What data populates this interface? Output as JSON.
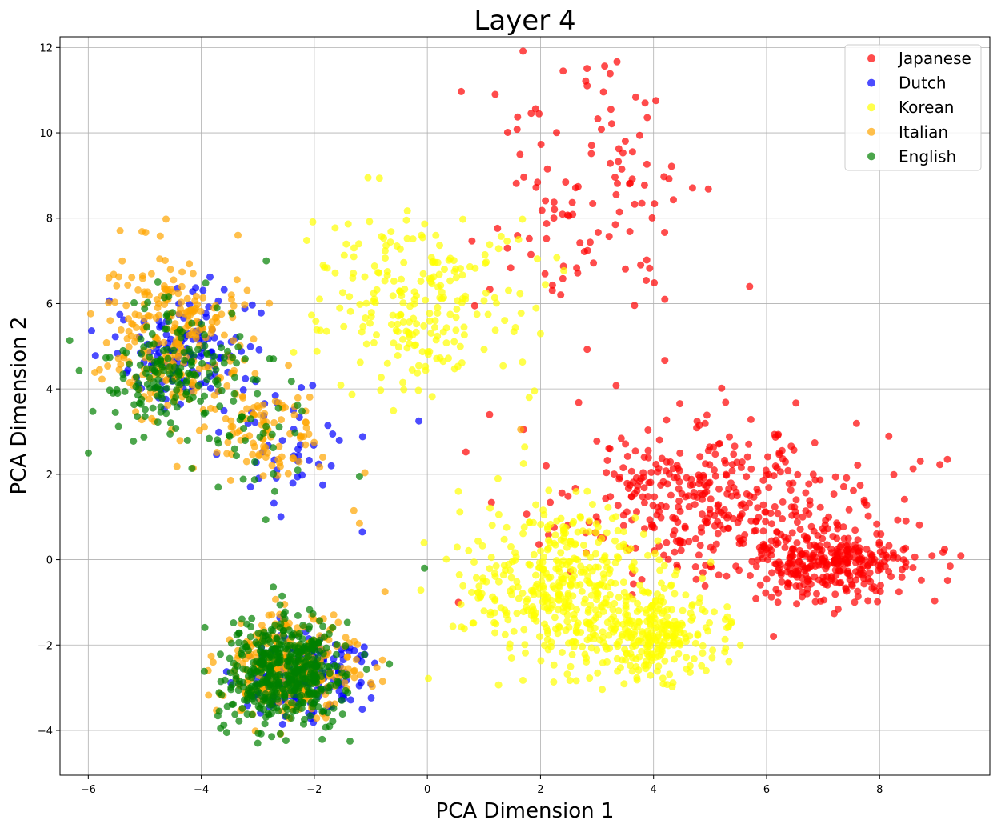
{
  "chart_data": {
    "type": "scatter",
    "title": "Layer 4",
    "xlabel": "PCA Dimension 1",
    "ylabel": "PCA Dimension 2",
    "xlim": [
      -6.5,
      9.95
    ],
    "ylim": [
      -5.05,
      12.25
    ],
    "xticks": [
      -6,
      -4,
      -2,
      0,
      2,
      4,
      6,
      8
    ],
    "yticks": [
      -4,
      -2,
      0,
      2,
      4,
      6,
      8,
      10,
      12
    ],
    "grid": true,
    "legend_position": "top-right",
    "series": [
      {
        "name": "Japanese",
        "color": "#ff0000",
        "clusters": [
          {
            "cx": 2.8,
            "cy": 8.4,
            "sx": 1.0,
            "sy": 1.6,
            "n": 110
          },
          {
            "cx": 4.9,
            "cy": 1.4,
            "sx": 1.3,
            "sy": 0.9,
            "n": 360
          },
          {
            "cx": 7.1,
            "cy": -0.1,
            "sx": 0.8,
            "sy": 0.45,
            "n": 330
          }
        ],
        "points": [
          [
            1.2,
            10.9
          ],
          [
            2.4,
            11.45
          ],
          [
            3.85,
            10.7
          ],
          [
            9.2,
            2.35
          ],
          [
            5.7,
            6.4
          ],
          [
            1.1,
            3.4
          ],
          [
            1.7,
            3.05
          ],
          [
            2.1,
            2.2
          ],
          [
            0.55,
            -1.0
          ],
          [
            4.2,
            6.1
          ]
        ]
      },
      {
        "name": "Dutch",
        "color": "#0000ff",
        "clusters": [
          {
            "cx": -4.3,
            "cy": 4.8,
            "sx": 0.55,
            "sy": 0.7,
            "n": 140
          },
          {
            "cx": -2.6,
            "cy": 3.0,
            "sx": 0.55,
            "sy": 0.7,
            "n": 40
          },
          {
            "cx": -2.1,
            "cy": -2.7,
            "sx": 0.55,
            "sy": 0.45,
            "n": 220
          }
        ],
        "points": [
          [
            -0.15,
            3.25
          ],
          [
            -1.15,
            0.65
          ],
          [
            -1.7,
            2.2
          ],
          [
            -1.85,
            1.75
          ]
        ]
      },
      {
        "name": "Korean",
        "color": "#ffff00",
        "clusters": [
          {
            "cx": -0.2,
            "cy": 6.0,
            "sx": 0.9,
            "sy": 1.0,
            "n": 230
          },
          {
            "cx": 2.5,
            "cy": -0.6,
            "sx": 0.9,
            "sy": 0.9,
            "n": 420
          },
          {
            "cx": 4.0,
            "cy": -1.8,
            "sx": 0.7,
            "sy": 0.5,
            "n": 250
          }
        ],
        "points": [
          [
            -1.05,
            8.95
          ],
          [
            1.8,
            3.8
          ],
          [
            0.55,
            1.6
          ],
          [
            1.25,
            1.9
          ],
          [
            1.7,
            2.25
          ]
        ]
      },
      {
        "name": "Italian",
        "color": "#ffa500",
        "clusters": [
          {
            "cx": -4.5,
            "cy": 5.2,
            "sx": 0.6,
            "sy": 0.95,
            "n": 260
          },
          {
            "cx": -2.8,
            "cy": 3.0,
            "sx": 0.5,
            "sy": 0.6,
            "n": 90
          },
          {
            "cx": -2.4,
            "cy": -2.5,
            "sx": 0.6,
            "sy": 0.55,
            "n": 300
          }
        ],
        "points": [
          [
            -5.8,
            4.45
          ],
          [
            -3.35,
            7.6
          ],
          [
            -1.3,
            1.15
          ],
          [
            -1.2,
            0.85
          ],
          [
            -0.75,
            -0.75
          ],
          [
            1.65,
            3.05
          ],
          [
            -1.85,
            2.4
          ]
        ]
      },
      {
        "name": "English",
        "color": "#008000",
        "clusters": [
          {
            "cx": -4.5,
            "cy": 4.5,
            "sx": 0.65,
            "sy": 0.75,
            "n": 170
          },
          {
            "cx": -3.0,
            "cy": 3.1,
            "sx": 0.5,
            "sy": 0.7,
            "n": 35
          },
          {
            "cx": -2.5,
            "cy": -2.7,
            "sx": 0.55,
            "sy": 0.6,
            "n": 480
          }
        ],
        "points": [
          [
            -0.05,
            -0.2
          ],
          [
            -1.2,
            1.95
          ],
          [
            -3.7,
            1.7
          ],
          [
            -2.7,
            1.6
          ],
          [
            -3.0,
            -4.3
          ],
          [
            -3.55,
            -4.05
          ],
          [
            -2.85,
            7.0
          ]
        ]
      }
    ]
  }
}
